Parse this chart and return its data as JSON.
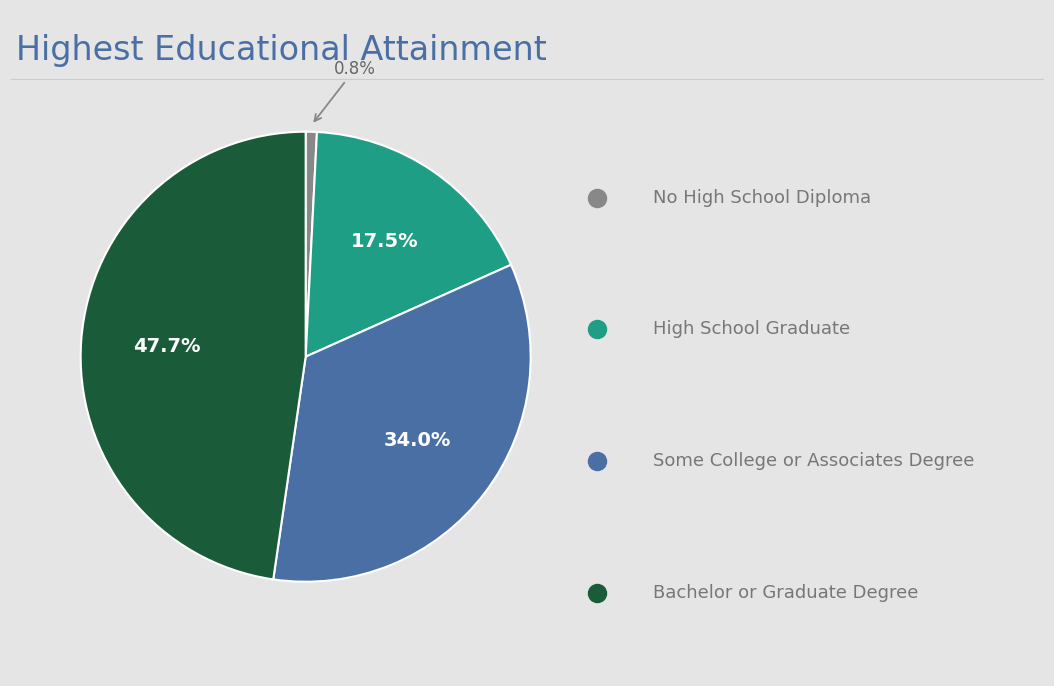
{
  "title": "Highest Educational Attainment",
  "background_color": "#e5e5e5",
  "title_color": "#4a6fa5",
  "slices": [
    0.8,
    17.5,
    34.0,
    47.7
  ],
  "labels": [
    "0.8%",
    "17.5%",
    "34.0%",
    "47.7%"
  ],
  "colors": [
    "#888888",
    "#1e9e84",
    "#4a6fa5",
    "#1a5c3a"
  ],
  "legend_labels": [
    "No High School Diploma",
    "High School Graduate",
    "Some College or Associates Degree",
    "Bachelor or Graduate Degree"
  ],
  "legend_colors": [
    "#888888",
    "#1e9e84",
    "#4a6fa5",
    "#1a5c3a"
  ],
  "startangle": 90,
  "wedge_edge_color": "#ffffff",
  "label_fontsize": 14,
  "legend_fontsize": 13,
  "title_fontsize": 24
}
